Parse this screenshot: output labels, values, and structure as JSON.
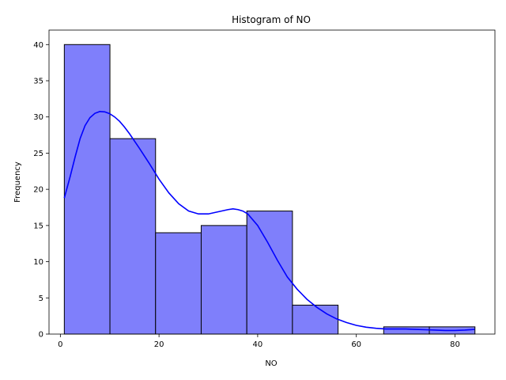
{
  "chart_data": {
    "type": "bar",
    "title": "Histogram of NO",
    "xlabel": "NO",
    "ylabel": "Frequency",
    "xlim": [
      -2.3,
      88.1
    ],
    "ylim": [
      0,
      42
    ],
    "xticks": [
      0,
      20,
      40,
      60,
      80
    ],
    "yticks": [
      0,
      5,
      10,
      15,
      20,
      25,
      30,
      35,
      40
    ],
    "bin_edges": [
      0.8,
      10.05,
      19.3,
      28.55,
      37.8,
      47.05,
      56.3,
      65.55,
      74.8,
      84.05
    ],
    "values": [
      40,
      27,
      14,
      15,
      17,
      4,
      0,
      1,
      1
    ],
    "bar_color": "#7f7ffb",
    "bar_edge_color": "#000000",
    "kde_color": "#0000ff",
    "kde": {
      "x": [
        0.8,
        2,
        3,
        4,
        5,
        6,
        7,
        8,
        9,
        10,
        11,
        12,
        13,
        14,
        16,
        18,
        20,
        22,
        24,
        26,
        28,
        30,
        32,
        34,
        35,
        36,
        37,
        38,
        40,
        42,
        44,
        46,
        48,
        50,
        52,
        54,
        56,
        58,
        60,
        62,
        64,
        66,
        68,
        70,
        72,
        74,
        76,
        78,
        80,
        82,
        84
      ],
      "y": [
        18.8,
        21.8,
        24.5,
        27.0,
        28.8,
        29.9,
        30.5,
        30.75,
        30.7,
        30.45,
        30.0,
        29.4,
        28.6,
        27.7,
        25.7,
        23.6,
        21.4,
        19.5,
        18.0,
        17.0,
        16.6,
        16.6,
        16.9,
        17.2,
        17.3,
        17.2,
        17.0,
        16.6,
        15.0,
        12.7,
        10.2,
        7.9,
        6.2,
        4.8,
        3.7,
        2.8,
        2.1,
        1.6,
        1.2,
        0.95,
        0.8,
        0.7,
        0.7,
        0.7,
        0.65,
        0.6,
        0.55,
        0.5,
        0.5,
        0.55,
        0.65
      ]
    }
  }
}
